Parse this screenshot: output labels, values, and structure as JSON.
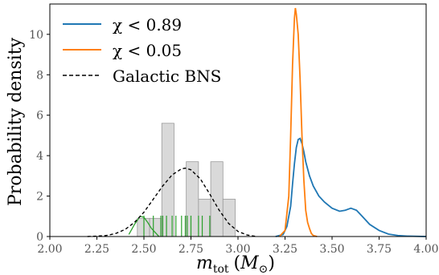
{
  "chart_data": {
    "type": "line",
    "title": "",
    "xlabel": "m_tot (M_☉)",
    "xlabel_parts": {
      "m": "m",
      "sub": "tot",
      "open": "(",
      "M": "M",
      "close": ")"
    },
    "ylabel": "Probability density",
    "xlim": [
      2.0,
      4.0
    ],
    "ylim": [
      0,
      11.5
    ],
    "x_ticks": [
      2.0,
      2.25,
      2.5,
      2.75,
      3.0,
      3.25,
      3.5,
      3.75,
      4.0
    ],
    "x_tick_labels": [
      "2.00",
      "2.25",
      "2.50",
      "2.75",
      "3.00",
      "3.25",
      "3.50",
      "3.75",
      "4.00"
    ],
    "y_ticks": [
      0,
      2,
      4,
      6,
      8,
      10
    ],
    "y_tick_labels": [
      "0",
      "2",
      "4",
      "6",
      "8",
      "10"
    ],
    "grid": false,
    "legend_position": "top-left",
    "legend": [
      {
        "label": "χ < 0.89",
        "color": "#1f77b4",
        "style": "solid"
      },
      {
        "label": "χ < 0.05",
        "color": "#ff7f0e",
        "style": "solid"
      },
      {
        "label": "Galactic BNS",
        "color": "#000000",
        "style": "dashed"
      }
    ],
    "colors": {
      "blue": "#1f77b4",
      "orange": "#ff7f0e",
      "green": "#2ca02c",
      "hist_fill": "#d9d9d9",
      "hist_edge": "#9a9a9a"
    },
    "series": [
      {
        "name": "χ < 0.89",
        "x": [
          3.2,
          3.24,
          3.26,
          3.28,
          3.29,
          3.3,
          3.31,
          3.32,
          3.33,
          3.34,
          3.35,
          3.36,
          3.38,
          3.4,
          3.43,
          3.46,
          3.5,
          3.54,
          3.57,
          3.6,
          3.63,
          3.66,
          3.7,
          3.75,
          3.8,
          3.85,
          3.9,
          4.0
        ],
        "y": [
          0.0,
          0.1,
          0.5,
          1.5,
          2.6,
          3.6,
          4.4,
          4.8,
          4.85,
          4.6,
          4.2,
          3.7,
          3.0,
          2.5,
          2.0,
          1.7,
          1.4,
          1.25,
          1.3,
          1.4,
          1.3,
          1.0,
          0.6,
          0.3,
          0.12,
          0.05,
          0.02,
          0.0
        ]
      },
      {
        "name": "χ < 0.05",
        "x": [
          3.22,
          3.25,
          3.27,
          3.28,
          3.29,
          3.3,
          3.305,
          3.31,
          3.32,
          3.33,
          3.34,
          3.35,
          3.36,
          3.37,
          3.38,
          3.39,
          3.4,
          3.42
        ],
        "y": [
          0.0,
          0.3,
          2.0,
          5.0,
          8.5,
          10.8,
          11.3,
          11.0,
          10.0,
          7.8,
          5.0,
          2.8,
          1.3,
          0.7,
          0.4,
          0.15,
          0.05,
          0.0
        ]
      },
      {
        "name": "Galactic BNS",
        "style": "dashed",
        "x": [
          2.2,
          2.25,
          2.3,
          2.35,
          2.4,
          2.45,
          2.5,
          2.55,
          2.6,
          2.65,
          2.7,
          2.72,
          2.75,
          2.8,
          2.85,
          2.9,
          2.95,
          3.0,
          3.05,
          3.1
        ],
        "y": [
          0.0,
          0.02,
          0.05,
          0.15,
          0.35,
          0.7,
          1.2,
          1.85,
          2.5,
          3.05,
          3.35,
          3.38,
          3.3,
          2.85,
          2.1,
          1.3,
          0.65,
          0.25,
          0.07,
          0.0
        ]
      }
    ],
    "histogram": {
      "bins": [
        {
          "x0": 2.465,
          "x1": 2.53,
          "value": 0.9
        },
        {
          "x0": 2.53,
          "x1": 2.595,
          "value": 0.9
        },
        {
          "x0": 2.595,
          "x1": 2.66,
          "value": 5.6
        },
        {
          "x0": 2.66,
          "x1": 2.725,
          "value": 0.0
        },
        {
          "x0": 2.725,
          "x1": 2.79,
          "value": 3.7
        },
        {
          "x0": 2.79,
          "x1": 2.855,
          "value": 1.85
        },
        {
          "x0": 2.855,
          "x1": 2.92,
          "value": 3.7
        },
        {
          "x0": 2.92,
          "x1": 2.985,
          "value": 1.85
        }
      ]
    },
    "green_line": {
      "x": [
        2.42,
        2.45,
        2.48,
        2.5,
        2.52,
        2.54,
        2.56,
        2.58
      ],
      "y": [
        0.1,
        0.6,
        1.0,
        0.95,
        0.7,
        0.4,
        0.2,
        0.0
      ]
    },
    "rug_ticks": [
      2.5,
      2.55,
      2.59,
      2.6,
      2.62,
      2.65,
      2.67,
      2.7,
      2.72,
      2.73,
      2.75,
      2.79,
      2.81,
      2.85
    ]
  }
}
